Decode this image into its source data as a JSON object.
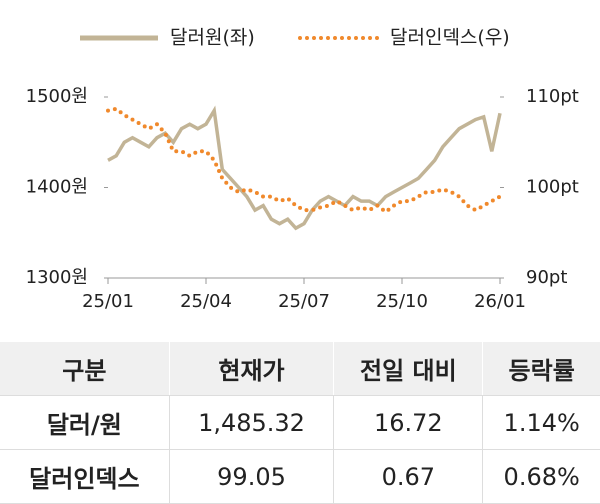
{
  "chart_data": {
    "type": "line",
    "xticks": [
      {
        "value": 0,
        "label": "25/01"
      },
      {
        "value": 3,
        "label": "25/04"
      },
      {
        "value": 6,
        "label": "25/07"
      },
      {
        "value": 9,
        "label": "25/10"
      },
      {
        "value": 12,
        "label": "26/01"
      }
    ],
    "xlim": [
      0,
      12
    ],
    "ylim": [
      1300,
      1500
    ],
    "yticks": [
      {
        "value": 1300,
        "label": "1300원"
      },
      {
        "value": 1400,
        "label": "1400원"
      },
      {
        "value": 1500,
        "label": "1500원"
      }
    ],
    "y2lim": [
      90,
      110
    ],
    "y2ticks": [
      {
        "value": 90,
        "label": "90pt"
      },
      {
        "value": 100,
        "label": "100pt"
      },
      {
        "value": 110,
        "label": "110pt"
      }
    ],
    "x": [
      0,
      0.25,
      0.5,
      0.75,
      1,
      1.25,
      1.5,
      1.75,
      2,
      2.25,
      2.5,
      2.75,
      3,
      3.25,
      3.5,
      3.75,
      4,
      4.25,
      4.5,
      4.75,
      5,
      5.25,
      5.5,
      5.75,
      6,
      6.25,
      6.5,
      6.75,
      7,
      7.25,
      7.5,
      7.75,
      8,
      8.25,
      8.5,
      8.75,
      9,
      9.25,
      9.5,
      9.75,
      10,
      10.25,
      10.5,
      10.75,
      11,
      11.25,
      11.5,
      11.75,
      12
    ],
    "series": [
      {
        "name": "달러원(좌)",
        "color": "#c2b496",
        "values": [
          1430,
          1435,
          1450,
          1455,
          1450,
          1445,
          1455,
          1460,
          1450,
          1465,
          1470,
          1465,
          1470,
          1485,
          1420,
          1410,
          1400,
          1390,
          1375,
          1380,
          1365,
          1360,
          1365,
          1355,
          1360,
          1375,
          1385,
          1390,
          1385,
          1380,
          1390,
          1385,
          1385,
          1380,
          1390,
          1395,
          1400,
          1405,
          1410,
          1420,
          1430,
          1445,
          1455,
          1465,
          1470,
          1475,
          1478,
          1440,
          1482
        ]
      },
      {
        "name": "달러인덱스(우)",
        "color": "#f0892c",
        "axis": "y2",
        "values": [
          108.5,
          108.7,
          108,
          107.5,
          107,
          106.5,
          107,
          106,
          104,
          104,
          103.5,
          104,
          104,
          103,
          101,
          100,
          99.5,
          99.8,
          99.5,
          99,
          99,
          98.5,
          98.8,
          98,
          97.5,
          97.5,
          97.8,
          98,
          98.5,
          98,
          97.5,
          97.8,
          97.5,
          98,
          97.3,
          98,
          98.5,
          98.5,
          99,
          99.5,
          99.5,
          99.8,
          99.5,
          99,
          98,
          97.5,
          98,
          98.5,
          99
        ]
      }
    ]
  },
  "table": {
    "headers": [
      "구분",
      "현재가",
      "전일 대비",
      "등락률"
    ],
    "rows": [
      [
        "달러/원",
        "1,485.32",
        "16.72",
        "1.14%"
      ],
      [
        "달러인덱스",
        "99.05",
        "0.67",
        "0.68%"
      ]
    ]
  }
}
